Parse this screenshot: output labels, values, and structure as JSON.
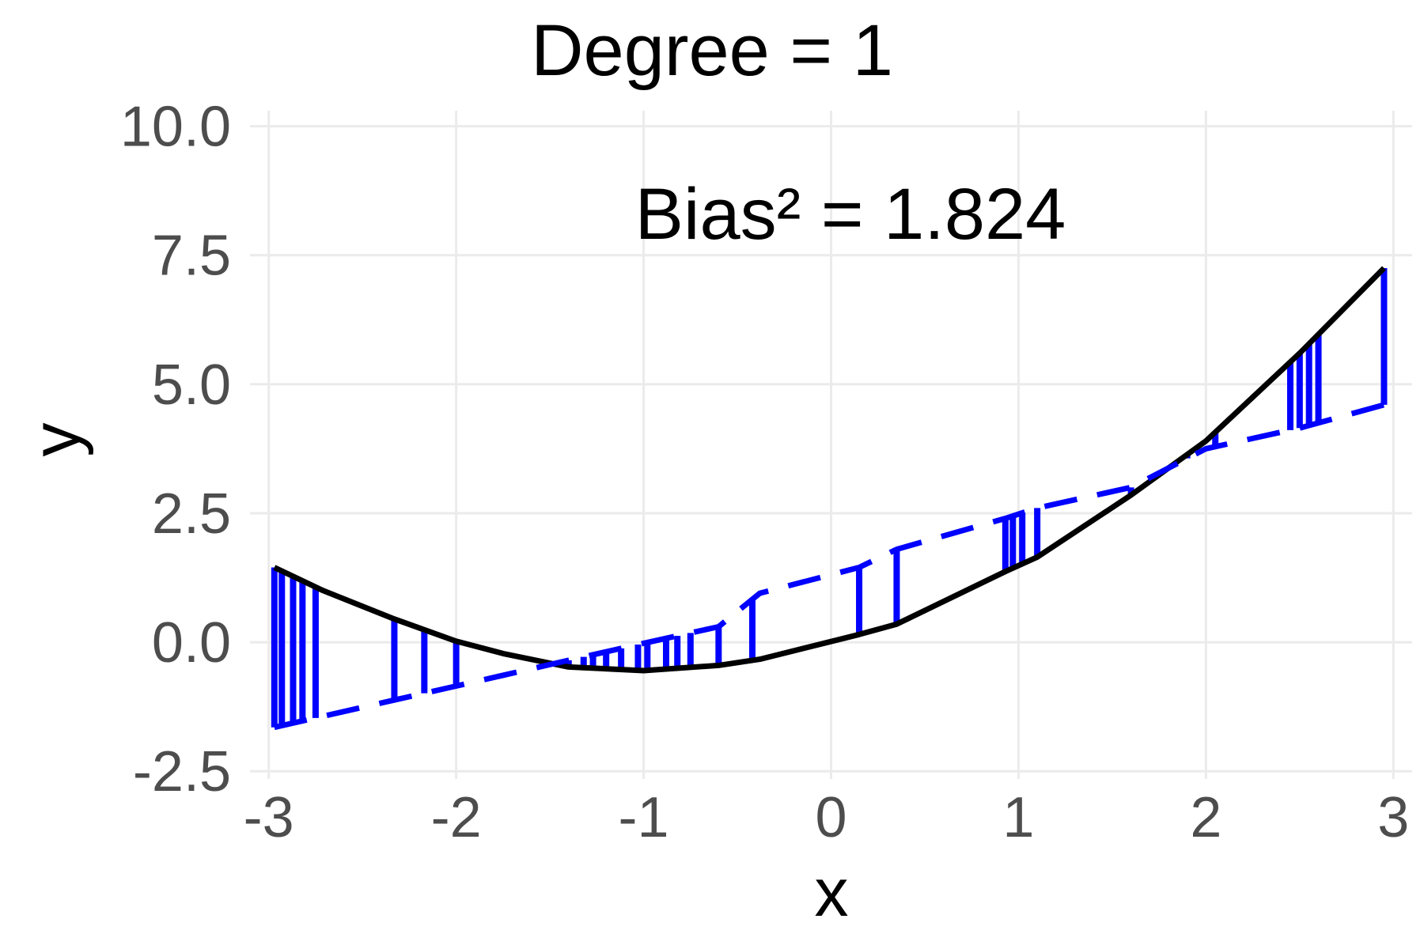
{
  "chart_data": {
    "type": "line",
    "title": "Degree =  1",
    "annotation": "Bias² = 1.824",
    "xlabel": "x",
    "ylabel": "y",
    "xlim": [
      -3.1,
      3.1
    ],
    "ylim": [
      -2.65,
      10.3
    ],
    "x_ticks": [
      -3,
      -2,
      -1,
      0,
      1,
      2,
      3
    ],
    "y_ticks": [
      -2.5,
      0.0,
      2.5,
      5.0,
      7.5,
      10.0
    ],
    "x_tick_labels": [
      "-3",
      "-2",
      "-1",
      "0",
      "1",
      "2",
      "3"
    ],
    "y_tick_labels": [
      "-2.5",
      "0.0",
      "2.5",
      "5.0",
      "7.5",
      "10.0"
    ],
    "grid": true,
    "series": [
      {
        "style": "solid",
        "color": "#000000",
        "x": [
          -2.97,
          -2.71,
          -2.33,
          -2.0,
          -1.75,
          -1.4,
          -1.0,
          -0.6,
          -0.38,
          0.15,
          0.35,
          0.93,
          1.1,
          1.6,
          2.0,
          2.5,
          2.95
        ],
        "y": [
          1.45,
          1.0,
          0.45,
          0.02,
          -0.22,
          -0.48,
          -0.55,
          -0.45,
          -0.33,
          0.15,
          0.35,
          1.37,
          1.65,
          2.85,
          3.9,
          5.6,
          7.25
        ]
      },
      {
        "style": "dashed",
        "color": "#0000ff",
        "x": [
          -2.97,
          -2.33,
          -2.0,
          -1.4,
          -1.0,
          -0.6,
          -0.38,
          0.15,
          0.35,
          0.93,
          1.1,
          1.6,
          2.0,
          2.5,
          2.95
        ],
        "y": [
          -1.65,
          -1.12,
          -0.85,
          -0.35,
          -0.02,
          0.3,
          0.95,
          1.45,
          1.8,
          2.4,
          2.6,
          3.0,
          3.75,
          4.15,
          4.6
        ]
      }
    ],
    "residual_segments": {
      "color": "#0000ff",
      "x": [
        -2.97,
        -2.93,
        -2.87,
        -2.82,
        -2.75,
        -2.33,
        -2.17,
        -2.0,
        -1.4,
        -1.32,
        -1.27,
        -1.2,
        -1.12,
        -1.03,
        -0.98,
        -0.88,
        -0.82,
        -0.75,
        -0.6,
        -0.42,
        0.15,
        0.35,
        0.93,
        0.97,
        1.02,
        1.1,
        1.6,
        1.9,
        2.05,
        2.45,
        2.5,
        2.55,
        2.6,
        2.95
      ]
    }
  }
}
